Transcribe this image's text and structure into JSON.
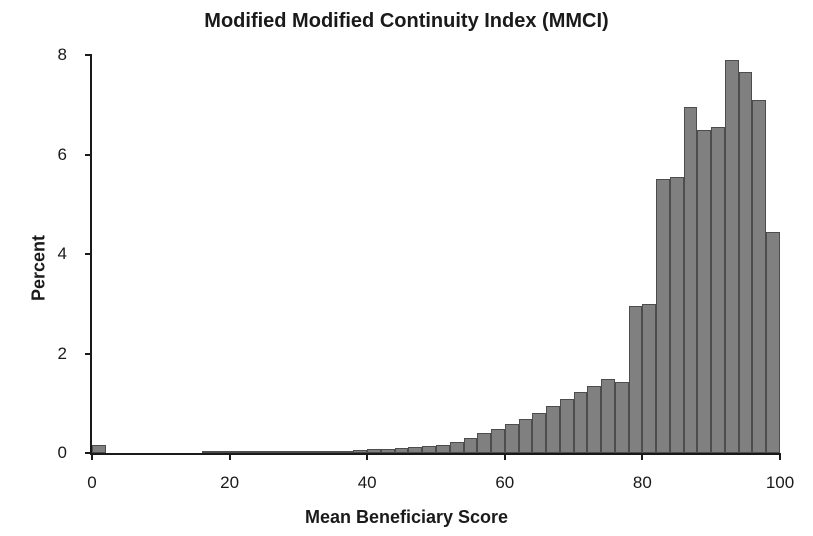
{
  "chart": {
    "type": "histogram",
    "title": "Modified Modified Continuity Index (MMCI)",
    "xlabel": "Mean Beneficiary Score",
    "ylabel": "Percent",
    "title_fontsize": 20,
    "label_fontsize": 18,
    "tick_fontsize": 17,
    "background_color": "#ffffff",
    "axis_color": "#1a1a1a",
    "bar_fill": "#808080",
    "bar_border": "#4d4d4d",
    "xlim": [
      0,
      100
    ],
    "ylim": [
      0,
      8
    ],
    "xtick_values": [
      0,
      20,
      40,
      60,
      80,
      100
    ],
    "ytick_values": [
      0,
      2,
      4,
      6,
      8
    ],
    "bin_width": 2,
    "bins_start": [
      0,
      2,
      4,
      6,
      8,
      10,
      12,
      14,
      16,
      18,
      20,
      22,
      24,
      26,
      28,
      30,
      32,
      34,
      36,
      38,
      40,
      42,
      44,
      46,
      48,
      50,
      52,
      54,
      56,
      58,
      60,
      62,
      64,
      66,
      68,
      70,
      72,
      74,
      76,
      78,
      80,
      82,
      84,
      86,
      88,
      90,
      92,
      94,
      96,
      98
    ],
    "values": [
      0.17,
      0.0,
      0.0,
      0.0,
      0.0,
      0.0,
      0.0,
      0.0,
      0.01,
      0.02,
      0.02,
      0.02,
      0.02,
      0.02,
      0.02,
      0.03,
      0.03,
      0.04,
      0.05,
      0.06,
      0.08,
      0.09,
      0.1,
      0.12,
      0.14,
      0.17,
      0.22,
      0.3,
      0.4,
      0.48,
      0.58,
      0.68,
      0.8,
      0.95,
      1.08,
      1.23,
      1.35,
      1.48,
      1.42,
      2.95,
      3.0,
      5.5,
      5.55,
      6.95,
      6.5,
      6.55,
      7.9,
      7.65,
      7.1,
      4.45
    ]
  }
}
